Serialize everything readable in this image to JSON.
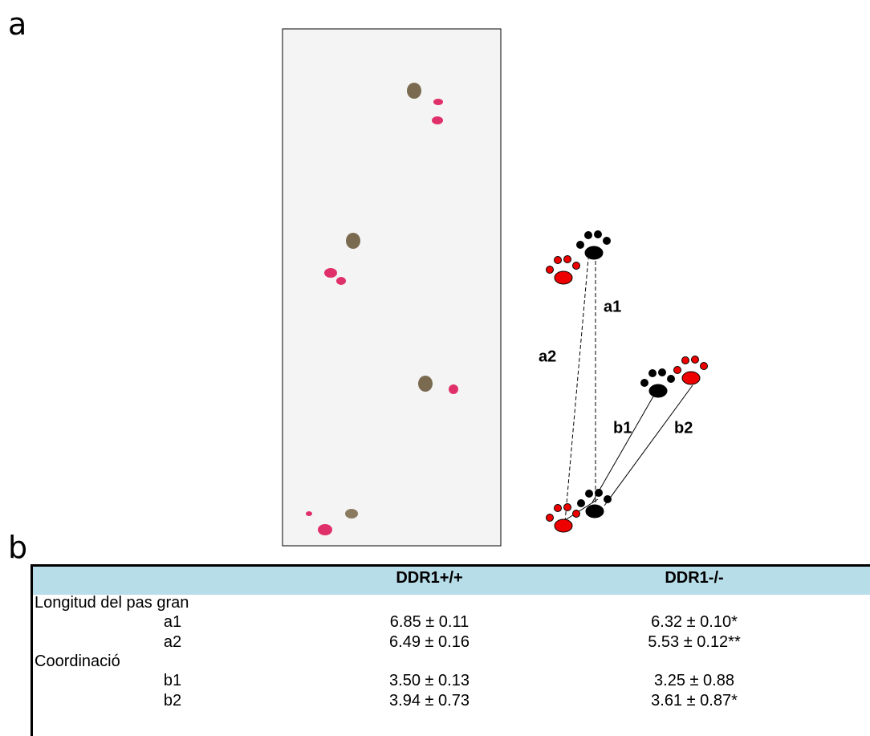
{
  "panel_labels": [
    "a",
    "b"
  ],
  "diagram": {
    "labels": [
      "a1",
      "a2",
      "b1",
      "b2"
    ]
  },
  "table": {
    "columns": [
      "DDR1+/+",
      "DDR1-/-"
    ],
    "sections": [
      {
        "title": "Longitud del pas gran",
        "rows": [
          {
            "label": "a1",
            "values": [
              "6.85 ± 0.11",
              "6.32 ± 0.10*"
            ]
          },
          {
            "label": "a2",
            "values": [
              "6.49 ± 0.16",
              "5.53 ± 0.12**"
            ]
          }
        ]
      },
      {
        "title": "Coordinació",
        "rows": [
          {
            "label": "b1",
            "values": [
              "3.50 ± 0.13",
              "3.25 ± 0.88"
            ]
          },
          {
            "label": "b2",
            "values": [
              "3.94 ± 0.73",
              "3.61 ± 0.87*"
            ]
          }
        ]
      }
    ]
  }
}
